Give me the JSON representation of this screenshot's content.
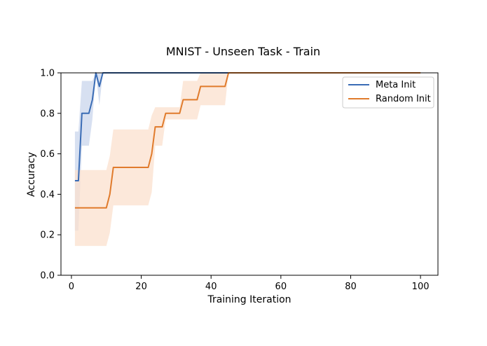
{
  "chart_data": {
    "type": "line",
    "title": "MNIST - Unseen Task - Train",
    "xlabel": "Training Iteration",
    "ylabel": "Accuracy",
    "xlim": [
      -3,
      105
    ],
    "ylim": [
      0.0,
      1.0
    ],
    "xticks": [
      0,
      20,
      40,
      60,
      80,
      100
    ],
    "yticks": [
      0.0,
      0.2,
      0.4,
      0.6,
      0.8,
      1.0
    ],
    "xtick_labels": [
      "0",
      "20",
      "40",
      "60",
      "80",
      "100"
    ],
    "ytick_labels": [
      "0.0",
      "0.2",
      "0.4",
      "0.6",
      "0.8",
      "1.0"
    ],
    "legend_position": "top-right",
    "series": [
      {
        "name": "Meta Init",
        "color": "#3a6cb5",
        "band_color": "#c9d6ec",
        "x": [
          1,
          2,
          3,
          4,
          5,
          6,
          7,
          8,
          9,
          10,
          20,
          40,
          60,
          80,
          100
        ],
        "y": [
          0.467,
          0.467,
          0.8,
          0.8,
          0.8,
          0.867,
          1.0,
          0.933,
          1.0,
          1.0,
          1.0,
          1.0,
          1.0,
          1.0,
          1.0
        ],
        "lower": [
          0.22,
          0.22,
          0.64,
          0.64,
          0.64,
          0.77,
          1.0,
          0.84,
          1.0,
          1.0,
          1.0,
          1.0,
          1.0,
          1.0,
          1.0
        ],
        "upper": [
          0.71,
          0.71,
          0.96,
          0.96,
          0.96,
          0.96,
          1.0,
          1.0,
          1.0,
          1.0,
          1.0,
          1.0,
          1.0,
          1.0,
          1.0
        ]
      },
      {
        "name": "Random Init",
        "color": "#e07b2c",
        "band_color": "#fbe0cd",
        "x": [
          1,
          10,
          11,
          12,
          22,
          23,
          24,
          26,
          27,
          31,
          32,
          36,
          37,
          44,
          45,
          100
        ],
        "y": [
          0.333,
          0.333,
          0.4,
          0.533,
          0.533,
          0.6,
          0.733,
          0.733,
          0.8,
          0.8,
          0.867,
          0.867,
          0.933,
          0.933,
          1.0,
          1.0
        ],
        "lower": [
          0.145,
          0.145,
          0.21,
          0.345,
          0.345,
          0.41,
          0.64,
          0.64,
          0.77,
          0.77,
          0.77,
          0.77,
          0.84,
          0.84,
          1.0,
          1.0
        ],
        "upper": [
          0.52,
          0.52,
          0.59,
          0.72,
          0.72,
          0.79,
          0.83,
          0.83,
          0.83,
          0.83,
          0.96,
          0.96,
          1.0,
          1.0,
          1.0,
          1.0
        ]
      }
    ]
  }
}
